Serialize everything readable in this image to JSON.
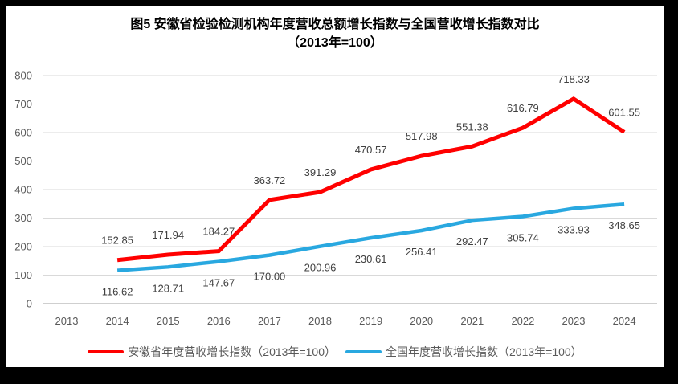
{
  "title": {
    "line1": "图5  安徽省检验检测机构年度营收总额增长指数与全国营收增长指数对比",
    "line2": "（2013年=100）"
  },
  "chart_data": {
    "type": "line",
    "title": "图5  安徽省检验检测机构年度营收总额增长指数与全国营收增长指数对比",
    "subtitle": "（2013年=100）",
    "categories": [
      "2013",
      "2014",
      "2015",
      "2016",
      "2017",
      "2018",
      "2019",
      "2020",
      "2021",
      "2022",
      "2023",
      "2024"
    ],
    "series": [
      {
        "id": "anhui-series",
        "name": "安徽省年度营收增长指数（2013年=100）",
        "color": "#FF0000",
        "stroke_width": 5,
        "label_side": "above",
        "values": [
          null,
          152.85,
          171.94,
          184.27,
          363.72,
          391.29,
          470.57,
          517.98,
          551.38,
          616.79,
          718.33,
          601.55
        ]
      },
      {
        "id": "national-series",
        "name": "全国年度营收增长指数（2013年=100）",
        "color": "#29A8E0",
        "stroke_width": 4.5,
        "label_side": "below",
        "values": [
          null,
          116.62,
          128.71,
          147.67,
          170.0,
          200.96,
          230.61,
          256.41,
          292.47,
          305.74,
          333.93,
          348.65
        ]
      }
    ],
    "xlabel": "",
    "ylabel": "",
    "ylim": [
      0,
      800
    ],
    "yticks": [
      0,
      100,
      200,
      300,
      400,
      500,
      600,
      700,
      800
    ],
    "grid": true,
    "legend_position": "bottom",
    "value_decimals": 2
  },
  "colors": {
    "frame": "#000000",
    "background": "#FFFFFF",
    "grid": "#D9D9D9",
    "axis": "#BFBFBF",
    "tick_label": "#595959",
    "data_label": "#404040",
    "legend_text": "#595959",
    "series_anhui": "#FF0000",
    "series_national": "#29A8E0"
  }
}
